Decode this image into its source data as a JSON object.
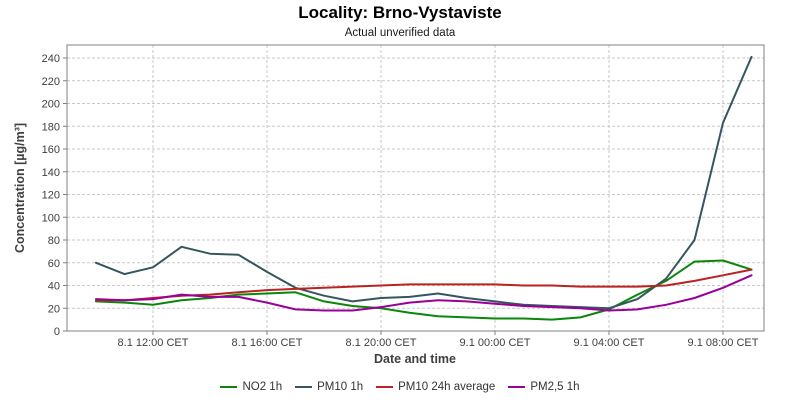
{
  "header": {
    "title": "Locality: Brno-Vystaviste",
    "subtitle": "Actual unverified data"
  },
  "chart_data": {
    "type": "line",
    "title": "Locality: Brno-Vystaviste",
    "subtitle": "Actual unverified data",
    "xlabel": "Date and time",
    "ylabel": "Concentration [µg/m³]",
    "unit": "µg/m³",
    "ylim": [
      0,
      240
    ],
    "ytick_step": 20,
    "grid": true,
    "legend_position": "bottom",
    "x": [
      "8.1 10:00",
      "8.1 11:00",
      "8.1 12:00",
      "8.1 13:00",
      "8.1 14:00",
      "8.1 15:00",
      "8.1 16:00",
      "8.1 17:00",
      "8.1 18:00",
      "8.1 19:00",
      "8.1 20:00",
      "8.1 21:00",
      "8.1 22:00",
      "8.1 23:00",
      "9.1 00:00",
      "9.1 01:00",
      "9.1 02:00",
      "9.1 03:00",
      "9.1 04:00",
      "9.1 05:00",
      "9.1 06:00",
      "9.1 07:00",
      "9.1 08:00",
      "9.1 09:00"
    ],
    "xtick_indices": [
      2,
      6,
      10,
      14,
      18,
      22
    ],
    "xtick_labels": [
      "8.1 12:00 CET",
      "8.1 16:00 CET",
      "8.1 20:00 CET",
      "9.1 00:00 CET",
      "9.1 04:00 CET",
      "9.1 08:00 CET"
    ],
    "series": [
      {
        "name": "NO2 1h",
        "color": "#0a870a",
        "values": [
          26,
          25,
          23,
          27,
          29,
          32,
          33,
          34,
          26,
          22,
          20,
          16,
          13,
          12,
          11,
          11,
          10,
          12,
          19,
          32,
          44,
          61,
          62,
          54
        ]
      },
      {
        "name": "PM10 1h",
        "color": "#36565e",
        "values": [
          60,
          50,
          56,
          74,
          68,
          67,
          52,
          38,
          31,
          26,
          29,
          30,
          33,
          29,
          26,
          23,
          22,
          21,
          20,
          28,
          46,
          80,
          183,
          241
        ]
      },
      {
        "name": "PM10 24h average",
        "color": "#bb2222",
        "values": [
          27,
          27,
          29,
          31,
          32,
          34,
          36,
          37,
          38,
          39,
          40,
          41,
          41,
          41,
          41,
          40,
          40,
          39,
          39,
          39,
          40,
          44,
          49,
          54
        ]
      },
      {
        "name": "PM2,5 1h",
        "color": "#990099",
        "values": [
          28,
          27,
          28,
          32,
          30,
          30,
          25,
          19,
          18,
          18,
          21,
          25,
          27,
          26,
          24,
          22,
          21,
          20,
          18,
          19,
          23,
          29,
          38,
          49
        ]
      }
    ],
    "colors": {
      "grid": "#c9c9c9",
      "frame": "#808080",
      "tick_text": "#404040",
      "background": "#ffffff"
    }
  }
}
